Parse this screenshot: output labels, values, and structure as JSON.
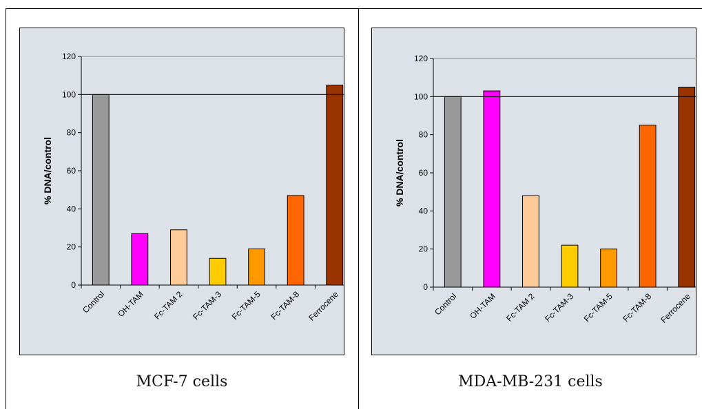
{
  "chart_data": [
    {
      "type": "bar",
      "caption": "MCF-7 cells",
      "ylabel": "% DNA/control",
      "ylim": [
        0,
        120
      ],
      "yticks": [
        0,
        20,
        40,
        60,
        80,
        100,
        120
      ],
      "reference_line": 100,
      "categories": [
        "Control",
        "OH-TAM",
        "Fc-TAM 2",
        "Fc-TAM-3",
        "Fc-TAM-5",
        "Fc-TAM-8",
        "Ferrocene"
      ],
      "values": [
        100,
        27,
        29,
        14,
        19,
        47,
        105
      ],
      "colors": [
        "#999999",
        "#ff00ff",
        "#ffcc99",
        "#ffcc00",
        "#ff9900",
        "#ff6600",
        "#993300"
      ],
      "grid": false,
      "background": "#dde2e8"
    },
    {
      "type": "bar",
      "caption": "MDA-MB-231 cells",
      "ylabel": "% DNA/control",
      "ylim": [
        0,
        120
      ],
      "yticks": [
        0,
        20,
        40,
        60,
        80,
        100,
        120
      ],
      "reference_line": 100,
      "categories": [
        "Control",
        "OH-TAM",
        "Fc-TAM 2",
        "Fc-TAM-3",
        "Fc-TAM-5",
        "Fc-TAM-8",
        "Ferrocene"
      ],
      "values": [
        100,
        103,
        48,
        22,
        20,
        85,
        105
      ],
      "colors": [
        "#999999",
        "#ff00ff",
        "#ffcc99",
        "#ffcc00",
        "#ff9900",
        "#ff6600",
        "#993300"
      ],
      "grid": false,
      "background": "#dde2e8"
    }
  ]
}
